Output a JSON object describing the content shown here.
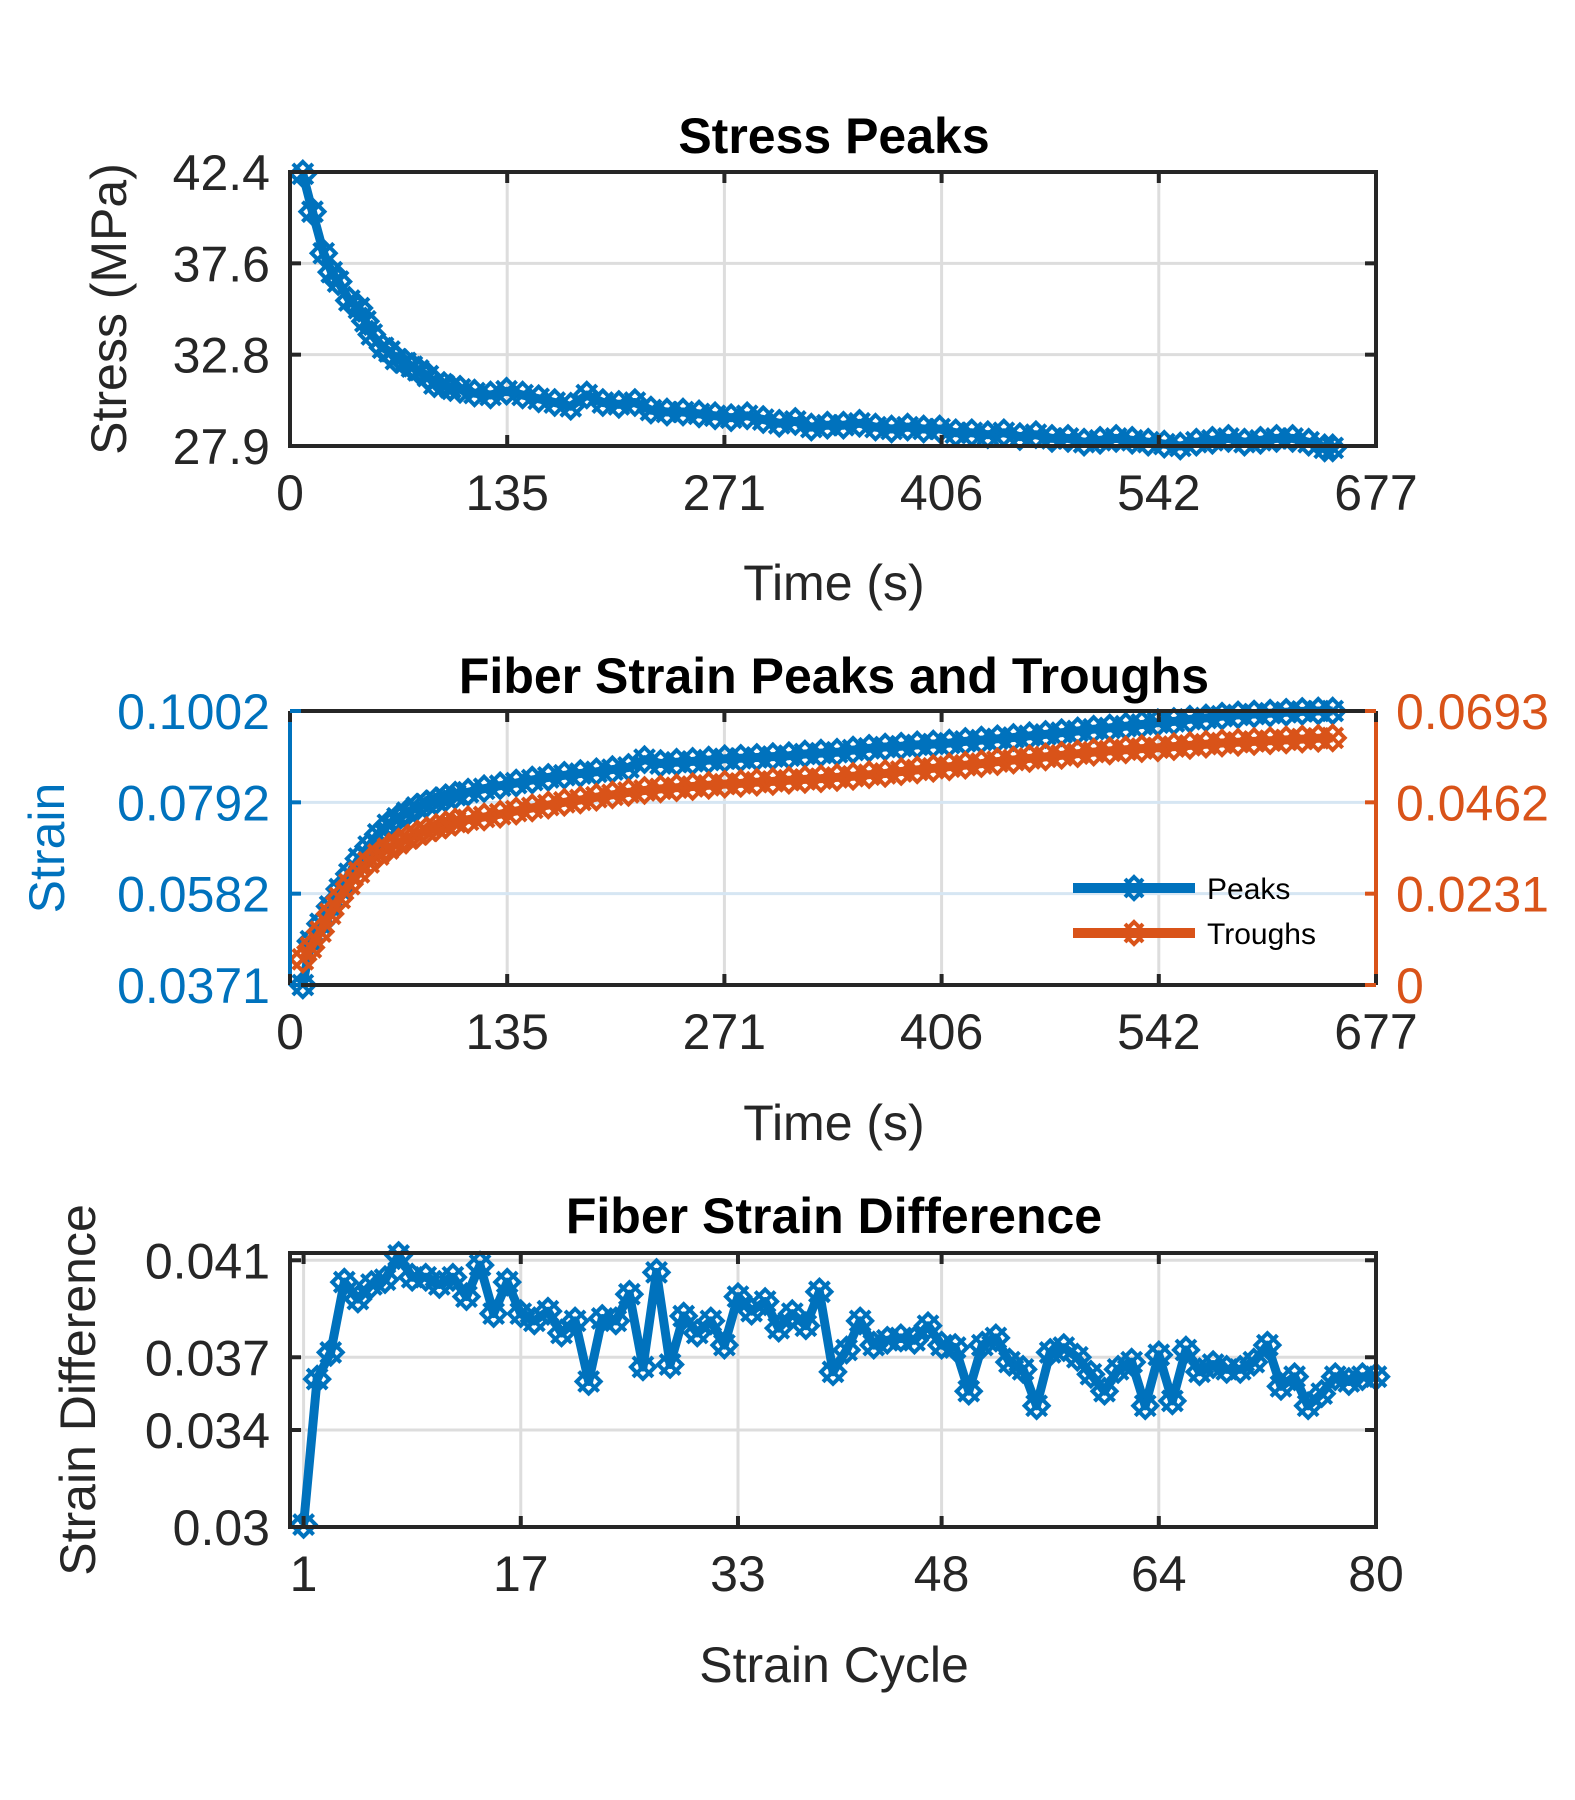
{
  "chart_data": [
    {
      "type": "line",
      "title": "Stress Peaks",
      "xlabel": "Time (s)",
      "ylabel": "Stress (MPa)",
      "xlim": [
        0,
        677
      ],
      "ylim": [
        27.9,
        42.4
      ],
      "xticks": [
        "0",
        "135",
        "271",
        "406",
        "542",
        "677"
      ],
      "yticks": [
        "27.9",
        "32.8",
        "37.6",
        "42.4"
      ],
      "grid": true,
      "series": [
        {
          "color": "#0072BD",
          "marker": "x-diamond",
          "x": [
            8,
            14,
            21,
            26,
            30,
            37,
            43,
            47,
            51,
            58,
            62,
            66,
            72,
            76,
            80,
            86,
            90,
            96,
            100,
            106,
            115,
            125,
            135,
            145,
            155,
            165,
            175,
            185,
            195,
            205,
            215,
            225,
            235,
            245,
            255,
            265,
            275,
            285,
            295,
            305,
            315,
            325,
            335,
            345,
            355,
            365,
            375,
            385,
            395,
            405,
            415,
            425,
            435,
            445,
            455,
            465,
            475,
            485,
            495,
            505,
            515,
            525,
            535,
            545,
            555,
            565,
            575,
            585,
            595,
            605,
            615,
            625,
            635,
            645,
            650
          ],
          "y": [
            42.3,
            40.3,
            38.1,
            37.1,
            36.6,
            35.6,
            35.2,
            34.5,
            33.8,
            33.1,
            32.9,
            32.5,
            32.3,
            32.1,
            31.9,
            31.6,
            31.2,
            31.1,
            31.0,
            30.9,
            30.7,
            30.6,
            30.8,
            30.6,
            30.4,
            30.2,
            30.0,
            30.6,
            30.2,
            30.1,
            30.2,
            29.8,
            29.7,
            29.7,
            29.6,
            29.5,
            29.4,
            29.5,
            29.3,
            29.1,
            29.2,
            28.9,
            29.0,
            29.0,
            29.1,
            28.9,
            28.8,
            28.9,
            28.8,
            28.8,
            28.6,
            28.6,
            28.5,
            28.6,
            28.4,
            28.5,
            28.3,
            28.3,
            28.1,
            28.2,
            28.3,
            28.2,
            28.1,
            28.0,
            27.9,
            28.1,
            28.2,
            28.3,
            28.1,
            28.2,
            28.3,
            28.3,
            28.1,
            27.8,
            27.8
          ]
        }
      ]
    },
    {
      "type": "line",
      "title": "Fiber Strain Peaks and Troughs",
      "xlabel": "Time (s)",
      "ylabel": "Strain",
      "xlim": [
        0,
        677
      ],
      "ylim": [
        0.0371,
        0.1002
      ],
      "ylim_right": [
        0,
        0.0693
      ],
      "xticks": [
        "0",
        "135",
        "271",
        "406",
        "542",
        "677"
      ],
      "yticks": [
        "0.0371",
        "0.0582",
        "0.0792",
        "0.1002"
      ],
      "yticks_right": [
        "0",
        "0.0231",
        "0.0462",
        "0.0693"
      ],
      "grid": true,
      "legend_position": "lower-right",
      "legend": [
        "Peaks",
        "Troughs"
      ],
      "series": [
        {
          "name": "Peaks",
          "axis": "left",
          "color": "#0072BD",
          "marker": "x-diamond",
          "x": [
            8,
            13,
            19,
            25,
            31,
            37,
            43,
            49,
            55,
            61,
            67,
            73,
            79,
            85,
            91,
            97,
            103,
            111,
            121,
            131,
            141,
            151,
            161,
            171,
            181,
            191,
            201,
            211,
            221,
            231,
            241,
            251,
            261,
            271,
            281,
            291,
            301,
            311,
            321,
            331,
            341,
            351,
            361,
            371,
            381,
            391,
            401,
            411,
            421,
            431,
            441,
            451,
            461,
            471,
            481,
            491,
            501,
            511,
            521,
            531,
            541,
            551,
            561,
            571,
            581,
            591,
            601,
            611,
            621,
            631,
            641,
            650
          ],
          "y": [
            0.0371,
            0.0472,
            0.0512,
            0.0552,
            0.0592,
            0.0627,
            0.0662,
            0.069,
            0.0718,
            0.074,
            0.0755,
            0.0768,
            0.078,
            0.0788,
            0.0795,
            0.0802,
            0.0808,
            0.0815,
            0.0823,
            0.083,
            0.0836,
            0.0843,
            0.0849,
            0.0854,
            0.0858,
            0.0862,
            0.0867,
            0.0872,
            0.089,
            0.0881,
            0.0884,
            0.0886,
            0.0889,
            0.0892,
            0.0893,
            0.0895,
            0.0897,
            0.0899,
            0.0903,
            0.0905,
            0.0907,
            0.0912,
            0.0916,
            0.0919,
            0.0921,
            0.0924,
            0.0926,
            0.0928,
            0.0932,
            0.0935,
            0.0938,
            0.0941,
            0.0945,
            0.0948,
            0.0952,
            0.0956,
            0.096,
            0.0963,
            0.0967,
            0.0971,
            0.0975,
            0.0978,
            0.0983,
            0.0986,
            0.099,
            0.0993,
            0.0995,
            0.0997,
            0.0999,
            0.1001,
            0.1002,
            0.1002
          ]
        },
        {
          "name": "Troughs",
          "axis": "right",
          "color": "#D95319",
          "marker": "x-diamond",
          "x": [
            8,
            13,
            19,
            25,
            31,
            37,
            43,
            49,
            55,
            61,
            67,
            73,
            79,
            85,
            91,
            97,
            103,
            111,
            121,
            131,
            141,
            151,
            161,
            171,
            181,
            191,
            201,
            211,
            221,
            231,
            241,
            251,
            261,
            271,
            281,
            291,
            301,
            311,
            321,
            331,
            341,
            351,
            361,
            371,
            381,
            391,
            401,
            411,
            421,
            431,
            441,
            451,
            461,
            471,
            481,
            491,
            501,
            511,
            521,
            531,
            541,
            551,
            561,
            571,
            581,
            591,
            601,
            611,
            621,
            631,
            641,
            650
          ],
          "y": [
            0.0065,
            0.0095,
            0.0135,
            0.018,
            0.022,
            0.0255,
            0.0285,
            0.031,
            0.033,
            0.0345,
            0.0358,
            0.037,
            0.038,
            0.039,
            0.0398,
            0.0405,
            0.0412,
            0.0418,
            0.0425,
            0.0432,
            0.044,
            0.0448,
            0.0455,
            0.0462,
            0.0468,
            0.0475,
            0.0481,
            0.0487,
            0.0492,
            0.0496,
            0.0499,
            0.0502,
            0.0505,
            0.0508,
            0.051,
            0.0513,
            0.0515,
            0.0518,
            0.052,
            0.0522,
            0.0525,
            0.0528,
            0.0532,
            0.0535,
            0.054,
            0.0544,
            0.0548,
            0.0552,
            0.0556,
            0.056,
            0.0565,
            0.0569,
            0.0573,
            0.0577,
            0.0581,
            0.0585,
            0.0589,
            0.0592,
            0.0595,
            0.0598,
            0.06,
            0.0603,
            0.0606,
            0.0609,
            0.0612,
            0.0614,
            0.0616,
            0.0618,
            0.062,
            0.0622,
            0.0624,
            0.0625
          ]
        }
      ]
    },
    {
      "type": "line",
      "title": "Fiber Strain Difference",
      "xlabel": "Strain Cycle",
      "ylabel": "Strain Difference",
      "xlim": [
        0,
        80
      ],
      "ylim": [
        0.03,
        0.0413
      ],
      "xticks": [
        "1",
        "17",
        "33",
        "48",
        "64",
        "80"
      ],
      "xtick_values": [
        1,
        17,
        33,
        48,
        64,
        80
      ],
      "yticks": [
        "0.03",
        "0.034",
        "0.037",
        "0.041"
      ],
      "ytick_values": [
        0.03,
        0.034,
        0.037,
        0.041
      ],
      "grid": true,
      "series": [
        {
          "color": "#0072BD",
          "marker": "x-diamond",
          "x": [
            1,
            2,
            3,
            4,
            5,
            6,
            7,
            8,
            9,
            10,
            11,
            12,
            13,
            14,
            15,
            16,
            17,
            18,
            19,
            20,
            21,
            22,
            23,
            24,
            25,
            26,
            27,
            28,
            29,
            30,
            31,
            32,
            33,
            34,
            35,
            36,
            37,
            38,
            39,
            40,
            41,
            42,
            43,
            44,
            45,
            46,
            47,
            48,
            49,
            50,
            51,
            52,
            53,
            54,
            55,
            56,
            57,
            58,
            59,
            60,
            61,
            62,
            63,
            64,
            65,
            66,
            67,
            68,
            69,
            70,
            71,
            72,
            73,
            74,
            75,
            76,
            77,
            78,
            79,
            80
          ],
          "y": [
            0.0301,
            0.0361,
            0.0372,
            0.0401,
            0.0394,
            0.04,
            0.0402,
            0.0412,
            0.0403,
            0.0403,
            0.04,
            0.0403,
            0.0395,
            0.0408,
            0.0388,
            0.0401,
            0.0388,
            0.0385,
            0.0389,
            0.038,
            0.0385,
            0.036,
            0.0386,
            0.0385,
            0.0396,
            0.0366,
            0.0405,
            0.0367,
            0.0387,
            0.038,
            0.0385,
            0.0375,
            0.0395,
            0.0389,
            0.0393,
            0.0382,
            0.0388,
            0.0383,
            0.0397,
            0.0364,
            0.0373,
            0.0385,
            0.0375,
            0.0377,
            0.0378,
            0.0377,
            0.0383,
            0.0375,
            0.0374,
            0.0356,
            0.0375,
            0.0378,
            0.0368,
            0.0365,
            0.035,
            0.0372,
            0.0374,
            0.037,
            0.0363,
            0.0356,
            0.0365,
            0.0368,
            0.035,
            0.0371,
            0.0352,
            0.0373,
            0.0364,
            0.0367,
            0.0365,
            0.0365,
            0.0368,
            0.0375,
            0.0358,
            0.0362,
            0.035,
            0.0355,
            0.0362,
            0.036,
            0.0362,
            0.0362
          ]
        }
      ]
    }
  ]
}
